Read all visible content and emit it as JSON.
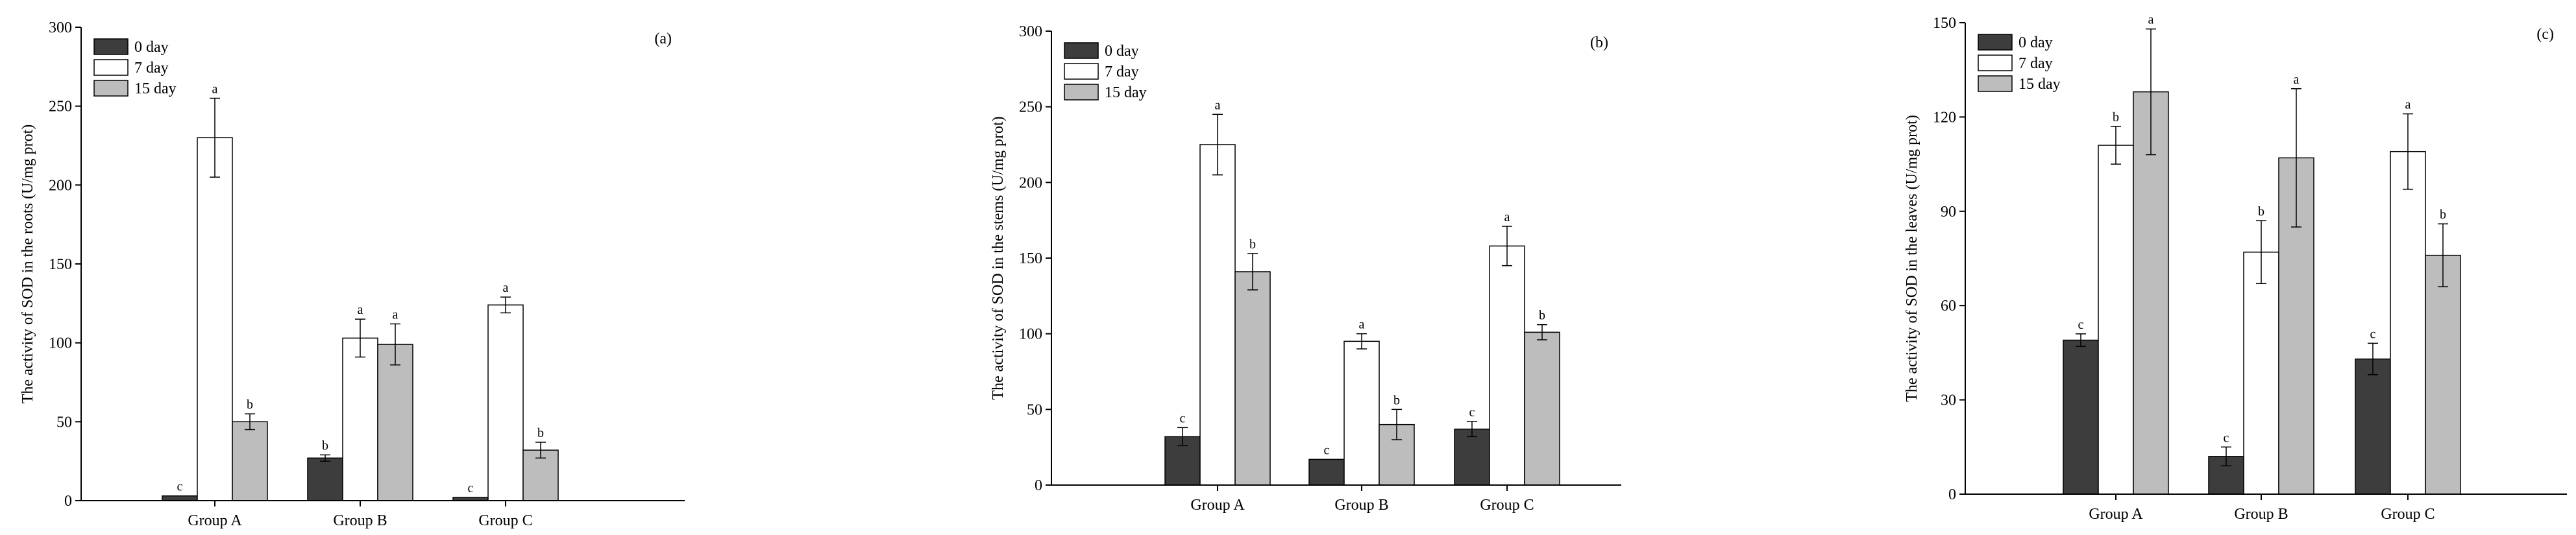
{
  "colors": {
    "day0": "#3d3d3d",
    "day7": "#ffffff",
    "day15": "#bdbdbd",
    "axis": "#000000",
    "background": "#ffffff"
  },
  "chart_data": [
    {
      "type": "bar",
      "panel_label": "(a)",
      "title": "",
      "ylabel": "The activity of SOD in the roots (U/mg prot)",
      "xlabel": "",
      "ylim": [
        0,
        300
      ],
      "yticks": [
        0,
        50,
        100,
        150,
        200,
        250,
        300
      ],
      "categories": [
        "Group A",
        "Group B",
        "Group C"
      ],
      "legend_position": "top-left",
      "series": [
        {
          "name": "0 day",
          "values": [
            3,
            27,
            2
          ],
          "errors": [
            0,
            2,
            0
          ],
          "letters": [
            "c",
            "b",
            "c"
          ]
        },
        {
          "name": "7 day",
          "values": [
            230,
            103,
            124
          ],
          "errors": [
            25,
            12,
            5
          ],
          "letters": [
            "a",
            "a",
            "a"
          ]
        },
        {
          "name": "15 day",
          "values": [
            50,
            99,
            32
          ],
          "errors": [
            5,
            13,
            5
          ],
          "letters": [
            "b",
            "a",
            "b"
          ]
        }
      ]
    },
    {
      "type": "bar",
      "panel_label": "(b)",
      "title": "",
      "ylabel": "The activity of SOD in the stems (U/mg prot)",
      "xlabel": "",
      "ylim": [
        0,
        300
      ],
      "yticks": [
        0,
        50,
        100,
        150,
        200,
        250,
        300
      ],
      "categories": [
        "Group A",
        "Group B",
        "Group C"
      ],
      "legend_position": "top-left",
      "series": [
        {
          "name": "0 day",
          "values": [
            32,
            17,
            37
          ],
          "errors": [
            6,
            0,
            5
          ],
          "letters": [
            "c",
            "c",
            "c"
          ]
        },
        {
          "name": "7 day",
          "values": [
            225,
            95,
            158
          ],
          "errors": [
            20,
            5,
            13
          ],
          "letters": [
            "a",
            "a",
            "a"
          ]
        },
        {
          "name": "15 day",
          "values": [
            141,
            40,
            101
          ],
          "errors": [
            12,
            10,
            5
          ],
          "letters": [
            "b",
            "b",
            "b"
          ]
        }
      ]
    },
    {
      "type": "bar",
      "panel_label": "(c)",
      "title": "",
      "ylabel": "The activity of SOD in the leaves (U/mg prot)",
      "xlabel": "",
      "ylim": [
        0,
        150
      ],
      "yticks": [
        0,
        30,
        60,
        90,
        120,
        150
      ],
      "categories": [
        "Group A",
        "Group B",
        "Group C"
      ],
      "legend_position": "top-left",
      "series": [
        {
          "name": "0 day",
          "values": [
            49,
            12,
            43
          ],
          "errors": [
            2,
            3,
            5
          ],
          "letters": [
            "c",
            "c",
            "c"
          ]
        },
        {
          "name": "7 day",
          "values": [
            111,
            77,
            109
          ],
          "errors": [
            6,
            10,
            12
          ],
          "letters": [
            "b",
            "b",
            "a"
          ]
        },
        {
          "name": "15 day",
          "values": [
            128,
            107,
            76
          ],
          "errors": [
            20,
            22,
            10
          ],
          "letters": [
            "a",
            "a",
            "b"
          ]
        }
      ]
    }
  ]
}
